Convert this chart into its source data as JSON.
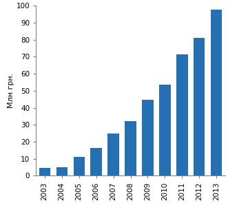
{
  "years": [
    "2003",
    "2004",
    "2005",
    "2006",
    "2007",
    "2008",
    "2009",
    "2010",
    "2011",
    "2012",
    "2013"
  ],
  "values": [
    4.8,
    5.2,
    11.0,
    16.5,
    25.0,
    32.0,
    44.5,
    53.5,
    71.5,
    81.0,
    97.5
  ],
  "bar_color": "#2470b3",
  "ylabel": "Млн грн.",
  "ylim": [
    0,
    100
  ],
  "yticks": [
    0,
    10,
    20,
    30,
    40,
    50,
    60,
    70,
    80,
    90,
    100
  ],
  "background_color": "#ffffff",
  "bar_width": 0.65,
  "tick_fontsize": 7.5,
  "ylabel_fontsize": 8.0,
  "spine_color": "#808080",
  "figsize": [
    3.31,
    2.95
  ],
  "dpi": 100
}
